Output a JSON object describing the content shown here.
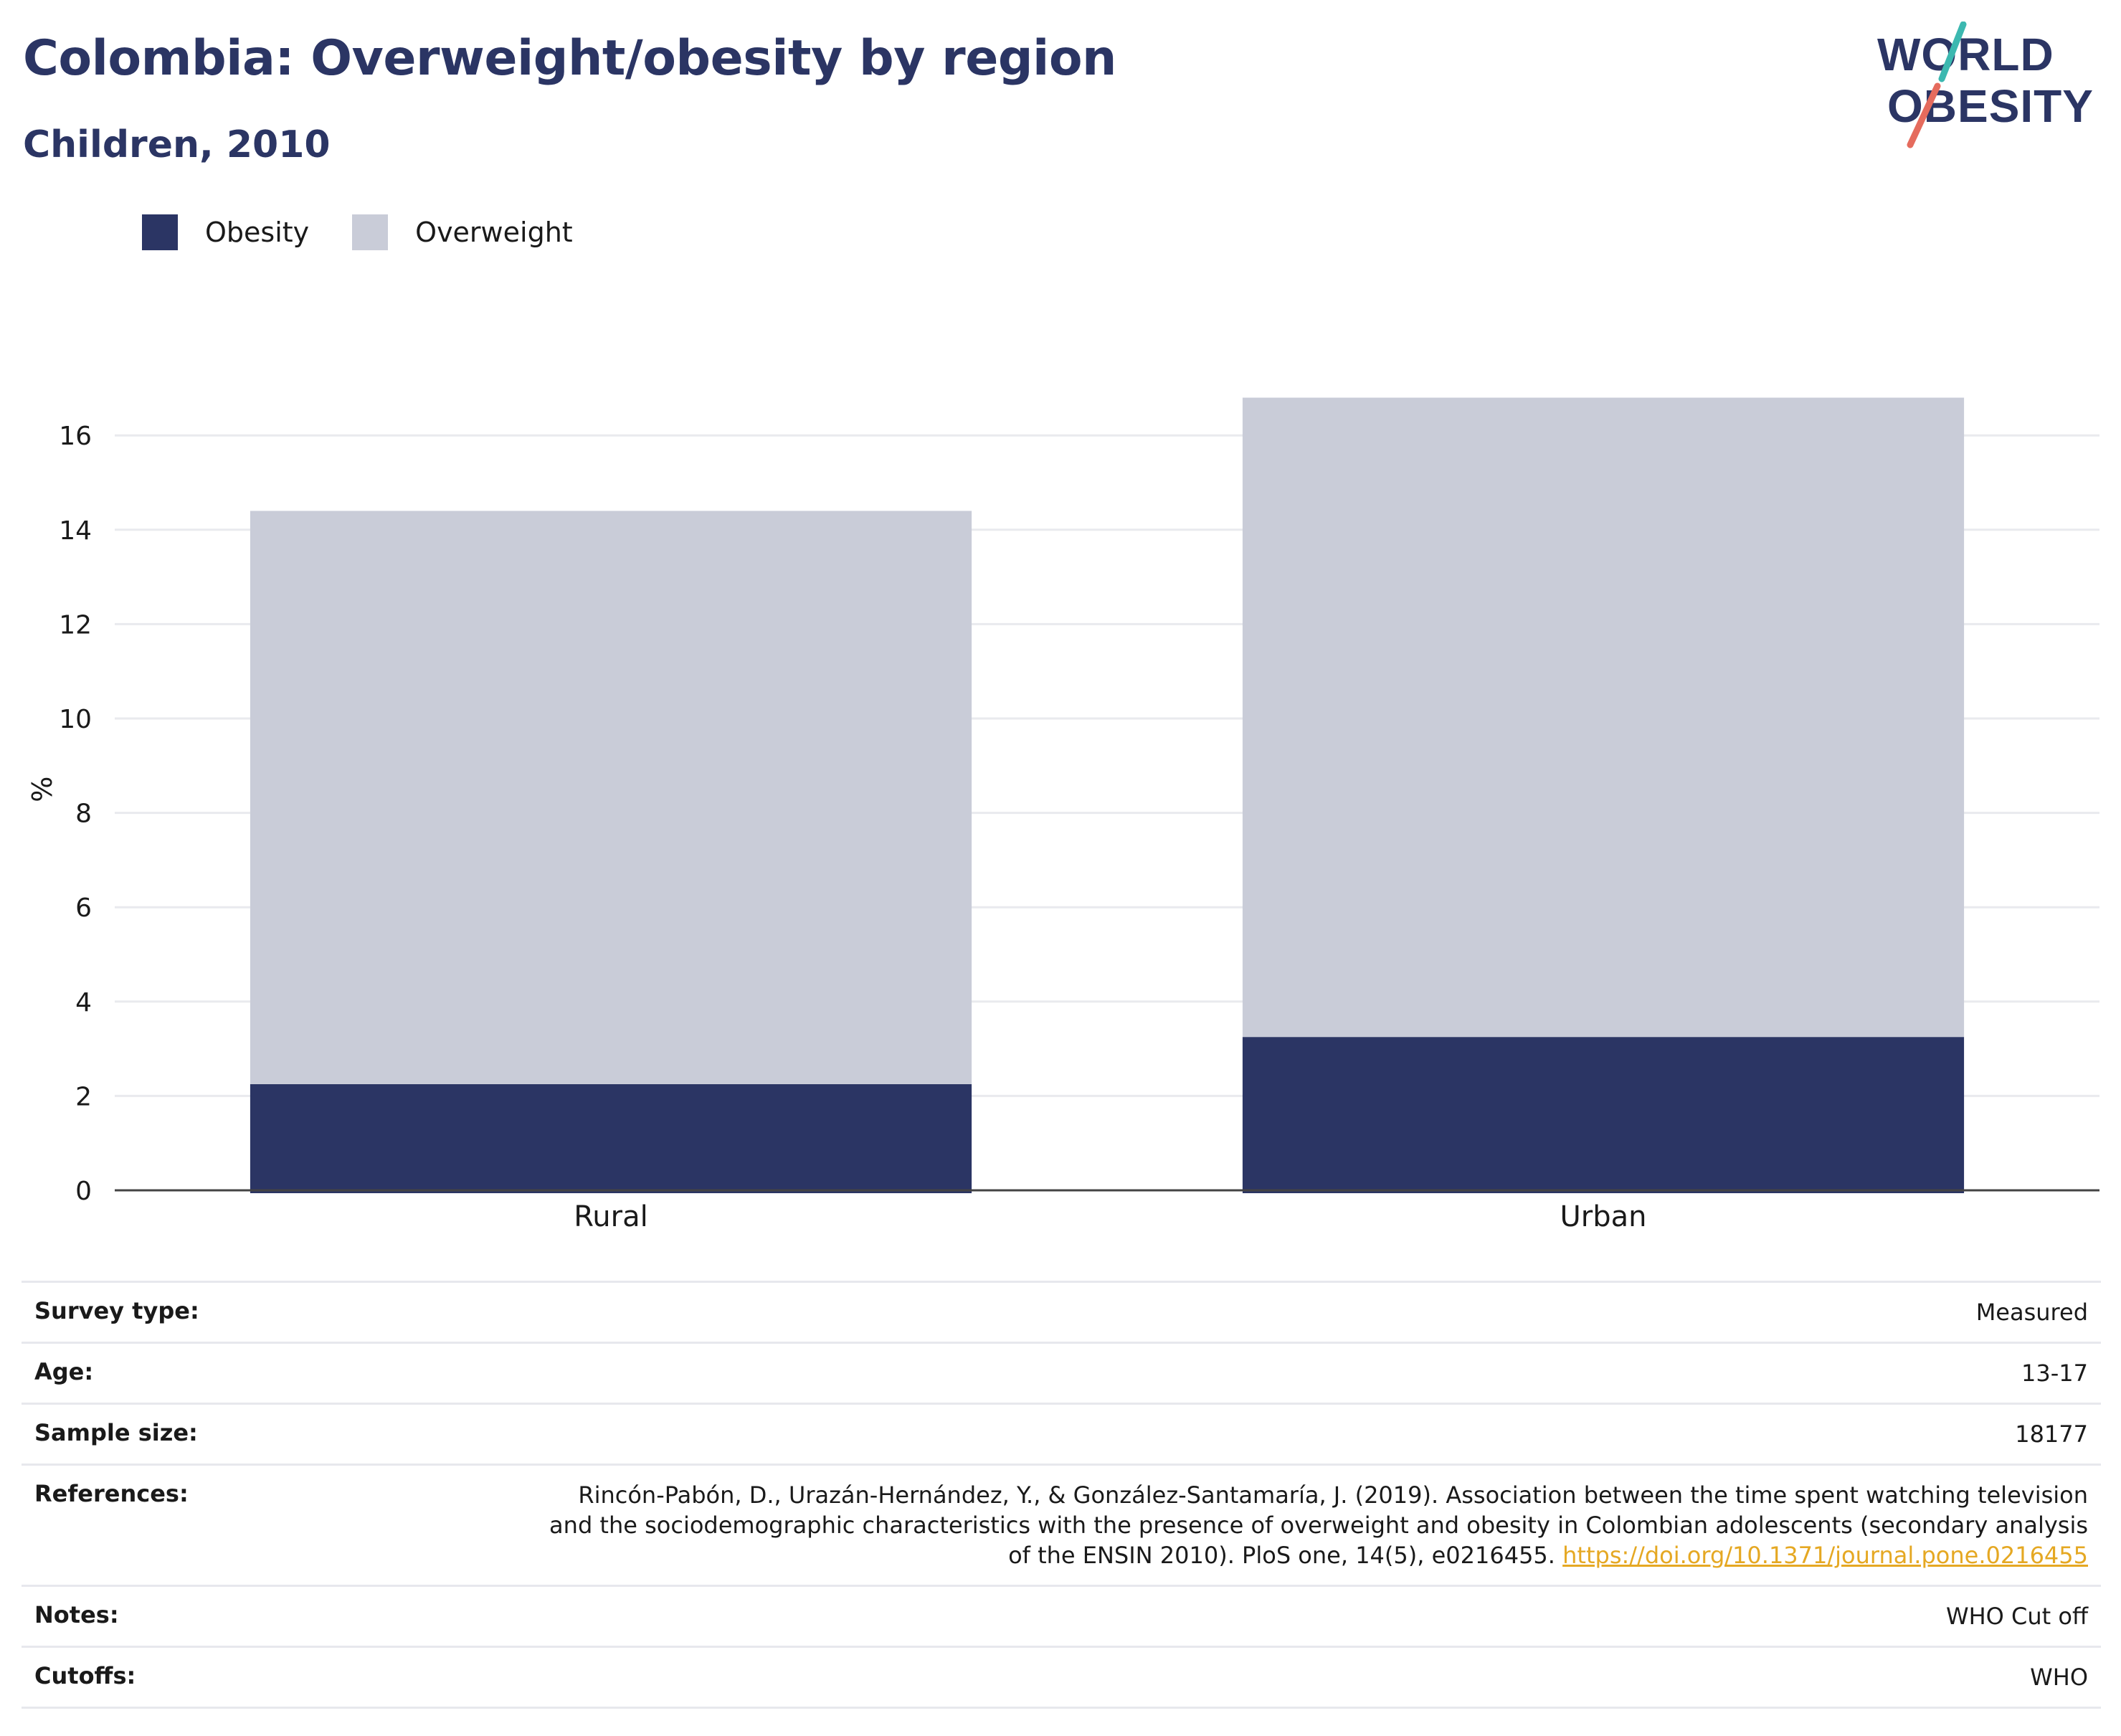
{
  "header": {
    "title": "Colombia: Overweight/obesity by region",
    "subtitle": "Children, 2010"
  },
  "logo": {
    "line1": "WORLD",
    "line2": "OBESITY",
    "slash_colors": [
      "#3cb8b0",
      "#e56b5d"
    ]
  },
  "legend": {
    "items": [
      {
        "label": "Obesity",
        "color": "#2b3564"
      },
      {
        "label": "Overweight",
        "color": "#c9ccd8"
      }
    ]
  },
  "chart_data": {
    "type": "bar",
    "stacked": true,
    "categories": [
      "Rural",
      "Urban"
    ],
    "series": [
      {
        "name": "Obesity",
        "values": [
          2.25,
          3.25
        ],
        "color": "#2b3564"
      },
      {
        "name": "Overweight",
        "values": [
          12.15,
          13.55
        ],
        "color": "#c9ccd8"
      }
    ],
    "ylabel": "%",
    "xlabel": "",
    "ylim": [
      0,
      17
    ],
    "yticks": [
      0,
      2,
      4,
      6,
      8,
      10,
      12,
      14,
      16
    ],
    "grid": true,
    "legend_position": "top-left"
  },
  "info": {
    "survey_type": {
      "key": "Survey type:",
      "value": "Measured"
    },
    "age": {
      "key": "Age:",
      "value": "13-17"
    },
    "sample_size": {
      "key": "Sample size:",
      "value": "18177"
    },
    "references": {
      "key": "References:",
      "text": "Rincón-Pabón, D., Urazán-Hernández, Y., & González-Santamaría, J. (2019). Association between the time spent watching television and the sociodemographic characteristics with the presence of overweight and obesity in Colombian adolescents (secondary analysis of the ENSIN 2010). PloS one, 14(5), e0216455.",
      "link": "https://doi.org/10.1371/journal.pone.0216455"
    },
    "notes": {
      "key": "Notes:",
      "value": "WHO Cut off"
    },
    "cutoffs": {
      "key": "Cutoffs:",
      "value": "WHO"
    }
  }
}
